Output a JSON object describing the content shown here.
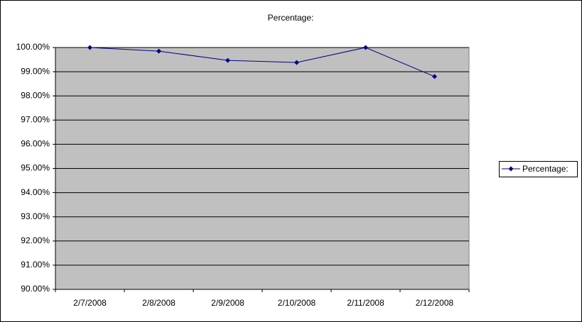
{
  "chart_data": {
    "type": "line",
    "title": "Percentage:",
    "categories": [
      "2/7/2008",
      "2/8/2008",
      "2/9/2008",
      "2/10/2008",
      "2/11/2008",
      "2/12/2008"
    ],
    "series": [
      {
        "name": "Percentage:",
        "color": "#000080",
        "values": [
          100,
          99.85,
          99.47,
          99.38,
          100,
          98.8
        ]
      }
    ],
    "ylim": [
      90,
      100
    ],
    "yticks": [
      {
        "value": 90,
        "label": "90.00%"
      },
      {
        "value": 91,
        "label": "91.00%"
      },
      {
        "value": 92,
        "label": "92.00%"
      },
      {
        "value": 93,
        "label": "93.00%"
      },
      {
        "value": 94,
        "label": "94.00%"
      },
      {
        "value": 95,
        "label": "95.00%"
      },
      {
        "value": 96,
        "label": "96.00%"
      },
      {
        "value": 97,
        "label": "97.00%"
      },
      {
        "value": 98,
        "label": "98.00%"
      },
      {
        "value": 99,
        "label": "99.00%"
      },
      {
        "value": 100,
        "label": "100.00%"
      }
    ],
    "grid": true,
    "plot_background": "#c0c0c0",
    "legend": "right"
  }
}
